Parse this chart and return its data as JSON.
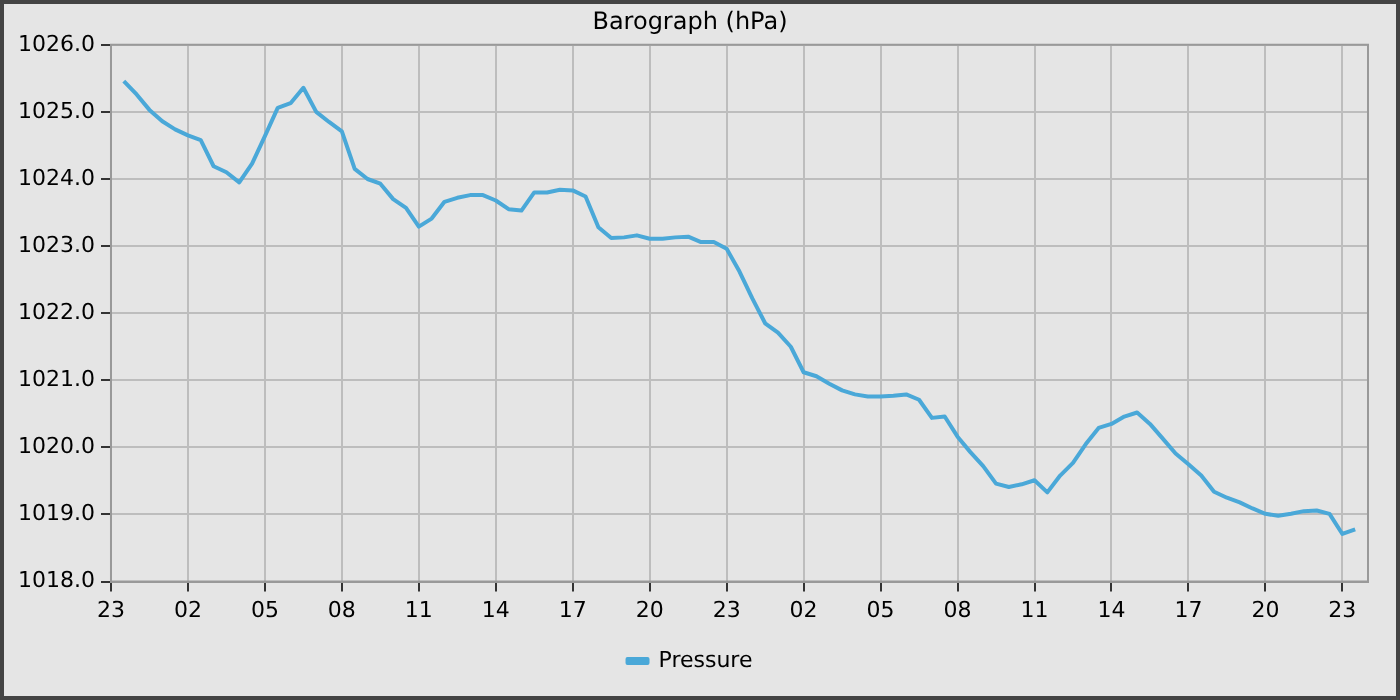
{
  "chart_data": {
    "type": "line",
    "title": "Barograph (hPa)",
    "categories": [
      "23",
      null,
      null,
      null,
      null,
      null,
      "02",
      null,
      null,
      null,
      null,
      null,
      "05",
      null,
      null,
      null,
      null,
      null,
      "08",
      null,
      null,
      null,
      null,
      null,
      "11",
      null,
      null,
      null,
      null,
      null,
      "14",
      null,
      null,
      null,
      null,
      null,
      "17",
      null,
      null,
      null,
      null,
      null,
      "20",
      null,
      null,
      null,
      null,
      null,
      "23",
      null,
      null,
      null,
      null,
      null,
      "02",
      null,
      null,
      null,
      null,
      null,
      "05",
      null,
      null,
      null,
      null,
      null,
      "08",
      null,
      null,
      null,
      null,
      null,
      "11",
      null,
      null,
      null,
      null,
      null,
      "14",
      null,
      null,
      null,
      null,
      null,
      "17",
      null,
      null,
      null,
      null,
      null,
      "20",
      null,
      null,
      null,
      null,
      null,
      "23",
      null,
      null
    ],
    "series": [
      {
        "name": "Pressure",
        "color": "#4aa8d8",
        "values": [
          null,
          1025.46,
          1025.26,
          1025.03,
          1024.86,
          1024.74,
          1024.65,
          1024.58,
          1024.19,
          1024.1,
          1023.95,
          1024.23,
          1024.64,
          1025.06,
          1025.13,
          1025.36,
          1025.0,
          1024.85,
          1024.71,
          1024.15,
          1024.0,
          1023.93,
          1023.7,
          1023.57,
          1023.29,
          1023.41,
          1023.66,
          1023.72,
          1023.76,
          1023.76,
          1023.68,
          1023.55,
          1023.53,
          1023.8,
          1023.8,
          1023.84,
          1023.83,
          1023.74,
          1023.28,
          1023.12,
          1023.13,
          1023.16,
          1023.11,
          1023.11,
          1023.13,
          1023.14,
          1023.06,
          1023.06,
          1022.96,
          1022.62,
          1022.22,
          1021.85,
          1021.71,
          1021.5,
          1021.12,
          1021.06,
          1020.95,
          1020.85,
          1020.79,
          1020.76,
          1020.76,
          1020.77,
          1020.79,
          1020.71,
          1020.44,
          1020.46,
          1020.16,
          1019.93,
          1019.72,
          1019.46,
          1019.41,
          1019.45,
          1019.51,
          1019.33,
          1019.58,
          1019.77,
          1020.05,
          1020.29,
          1020.35,
          1020.46,
          1020.52,
          1020.35,
          1020.13,
          1019.91,
          1019.75,
          1019.58,
          1019.34,
          1019.25,
          1019.18,
          1019.09,
          1019.01,
          1018.98,
          1019.01,
          1019.05,
          1019.06,
          1019.01,
          1018.71,
          1018.78,
          null
        ]
      }
    ],
    "ylim": [
      1018,
      1026
    ],
    "yticks": [
      {
        "value": 1018,
        "label": "1018.0"
      },
      {
        "value": 1019,
        "label": "1019.0"
      },
      {
        "value": 1020,
        "label": "1020.0"
      },
      {
        "value": 1021,
        "label": "1021.0"
      },
      {
        "value": 1022,
        "label": "1022.0"
      },
      {
        "value": 1023,
        "label": "1023.0"
      },
      {
        "value": 1024,
        "label": "1024.0"
      },
      {
        "value": 1025,
        "label": "1025.0"
      },
      {
        "value": 1026,
        "label": "1026.0"
      }
    ],
    "grid": true,
    "legend": "bottom",
    "marker": "none",
    "line_style": "solid"
  }
}
